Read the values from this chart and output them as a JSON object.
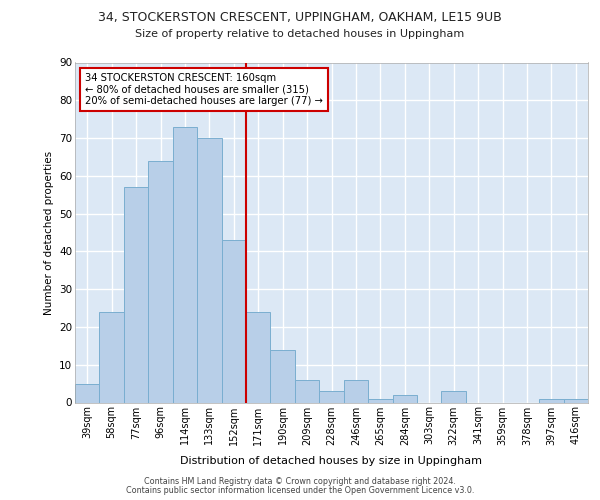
{
  "title_line1": "34, STOCKERSTON CRESCENT, UPPINGHAM, OAKHAM, LE15 9UB",
  "title_line2": "Size of property relative to detached houses in Uppingham",
  "xlabel": "Distribution of detached houses by size in Uppingham",
  "ylabel": "Number of detached properties",
  "categories": [
    "39sqm",
    "58sqm",
    "77sqm",
    "96sqm",
    "114sqm",
    "133sqm",
    "152sqm",
    "171sqm",
    "190sqm",
    "209sqm",
    "228sqm",
    "246sqm",
    "265sqm",
    "284sqm",
    "303sqm",
    "322sqm",
    "341sqm",
    "359sqm",
    "378sqm",
    "397sqm",
    "416sqm"
  ],
  "values": [
    5,
    24,
    57,
    64,
    73,
    70,
    43,
    24,
    14,
    6,
    3,
    6,
    1,
    2,
    0,
    3,
    0,
    0,
    0,
    1,
    1
  ],
  "bar_color": "#b8cfe8",
  "bar_edge_color": "#7aaed0",
  "ylim_max": 90,
  "yticks": [
    0,
    10,
    20,
    30,
    40,
    50,
    60,
    70,
    80,
    90
  ],
  "vline_pos": 6.5,
  "vline_color": "#cc0000",
  "annotation_text": "34 STOCKERSTON CRESCENT: 160sqm\n← 80% of detached houses are smaller (315)\n20% of semi-detached houses are larger (77) →",
  "bg_color": "#dce8f5",
  "grid_color": "#ffffff",
  "footer1": "Contains HM Land Registry data © Crown copyright and database right 2024.",
  "footer2": "Contains public sector information licensed under the Open Government Licence v3.0."
}
